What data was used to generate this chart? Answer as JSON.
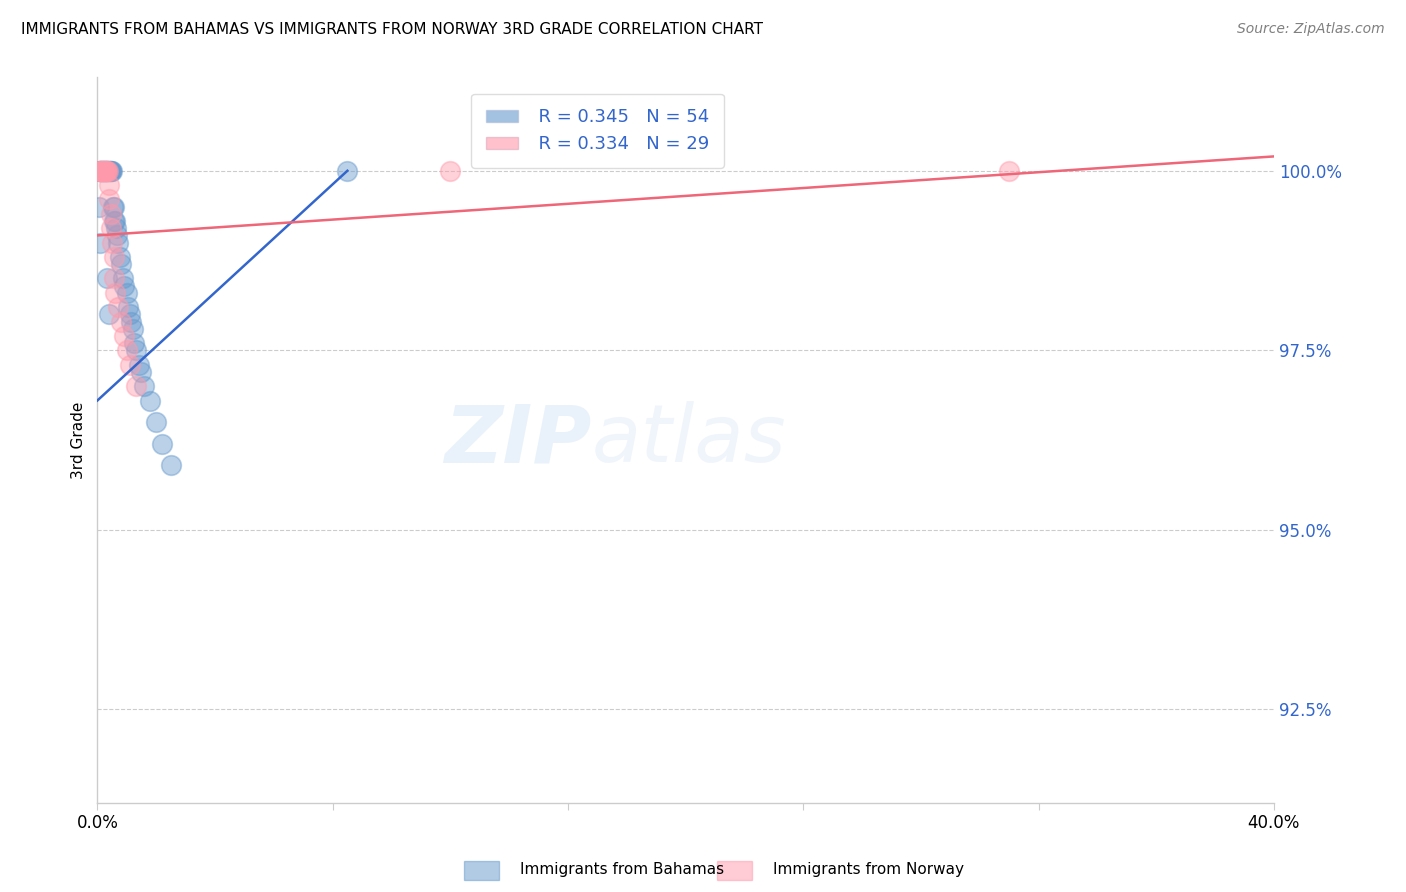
{
  "title": "IMMIGRANTS FROM BAHAMAS VS IMMIGRANTS FROM NORWAY 3RD GRADE CORRELATION CHART",
  "source": "Source: ZipAtlas.com",
  "ylabel": "3rd Grade",
  "ytick_labels": [
    "92.5%",
    "95.0%",
    "97.5%",
    "100.0%"
  ],
  "ytick_values": [
    92.5,
    95.0,
    97.5,
    100.0
  ],
  "xlim": [
    0.0,
    40.0
  ],
  "ylim": [
    91.2,
    101.3
  ],
  "watermark_zip": "ZIP",
  "watermark_atlas": "atlas",
  "footer_blue": "Immigrants from Bahamas",
  "footer_pink": "Immigrants from Norway",
  "blue_color": "#6699CC",
  "pink_color": "#FF99AA",
  "blue_line_color": "#3366CC",
  "pink_line_color": "#EE6677",
  "grid_color": "#CCCCCC",
  "blue_x": [
    0.05,
    0.08,
    0.1,
    0.12,
    0.13,
    0.15,
    0.17,
    0.18,
    0.2,
    0.22,
    0.23,
    0.25,
    0.27,
    0.28,
    0.3,
    0.32,
    0.33,
    0.35,
    0.38,
    0.4,
    0.42,
    0.45,
    0.48,
    0.5,
    0.52,
    0.55,
    0.58,
    0.6,
    0.65,
    0.68,
    0.7,
    0.78,
    0.8,
    0.88,
    0.9,
    1.0,
    1.05,
    1.1,
    1.15,
    1.2,
    1.25,
    1.3,
    1.4,
    1.5,
    1.6,
    1.8,
    2.0,
    2.2,
    2.5,
    0.06,
    0.09,
    0.33,
    0.38,
    8.5
  ],
  "blue_y": [
    100.0,
    100.0,
    100.0,
    100.0,
    100.0,
    100.0,
    100.0,
    100.0,
    100.0,
    100.0,
    100.0,
    100.0,
    100.0,
    100.0,
    100.0,
    100.0,
    100.0,
    100.0,
    100.0,
    100.0,
    100.0,
    100.0,
    100.0,
    100.0,
    99.5,
    99.5,
    99.3,
    99.3,
    99.2,
    99.1,
    99.0,
    98.8,
    98.7,
    98.5,
    98.4,
    98.3,
    98.1,
    98.0,
    97.9,
    97.8,
    97.6,
    97.5,
    97.3,
    97.2,
    97.0,
    96.8,
    96.5,
    96.2,
    95.9,
    99.5,
    99.0,
    98.5,
    98.0,
    100.0
  ],
  "pink_x": [
    0.05,
    0.08,
    0.1,
    0.12,
    0.15,
    0.18,
    0.2,
    0.22,
    0.25,
    0.28,
    0.3,
    0.33,
    0.35,
    0.38,
    0.4,
    0.45,
    0.48,
    0.5,
    0.55,
    0.58,
    0.6,
    0.7,
    0.8,
    0.9,
    1.0,
    1.1,
    1.3,
    12.0,
    31.0
  ],
  "pink_y": [
    100.0,
    100.0,
    100.0,
    100.0,
    100.0,
    100.0,
    100.0,
    100.0,
    100.0,
    100.0,
    100.0,
    100.0,
    100.0,
    99.8,
    99.6,
    99.4,
    99.2,
    99.0,
    98.8,
    98.5,
    98.3,
    98.1,
    97.9,
    97.7,
    97.5,
    97.3,
    97.0,
    100.0,
    100.0
  ],
  "blue_trendline_x": [
    0.0,
    8.5
  ],
  "blue_trendline_y": [
    96.8,
    100.0
  ],
  "pink_trendline_x": [
    0.0,
    40.0
  ],
  "pink_trendline_y": [
    99.1,
    100.2
  ]
}
